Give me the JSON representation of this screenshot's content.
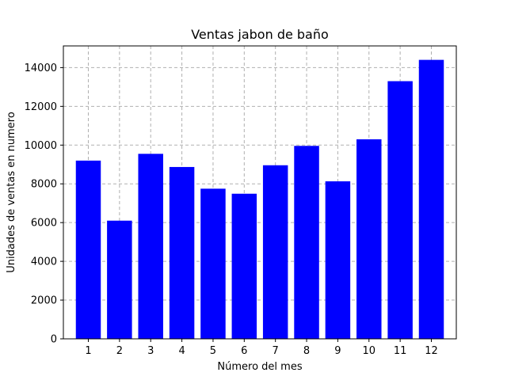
{
  "chart_data": {
    "type": "bar",
    "title": "Ventas jabon de baño",
    "xlabel": "Número del mes",
    "ylabel": "Unidades de ventas en numero",
    "categories": [
      "1",
      "2",
      "3",
      "4",
      "5",
      "6",
      "7",
      "8",
      "9",
      "10",
      "11",
      "12"
    ],
    "values": [
      9200,
      6100,
      9550,
      8870,
      7750,
      7490,
      8960,
      9960,
      8130,
      10300,
      13300,
      14400
    ],
    "ylim": [
      0,
      15120
    ],
    "yticks": [
      0,
      2000,
      4000,
      6000,
      8000,
      10000,
      12000,
      14000
    ],
    "grid": true,
    "bar_color": "#0000ff",
    "grid_color": "#b0b0b0"
  }
}
